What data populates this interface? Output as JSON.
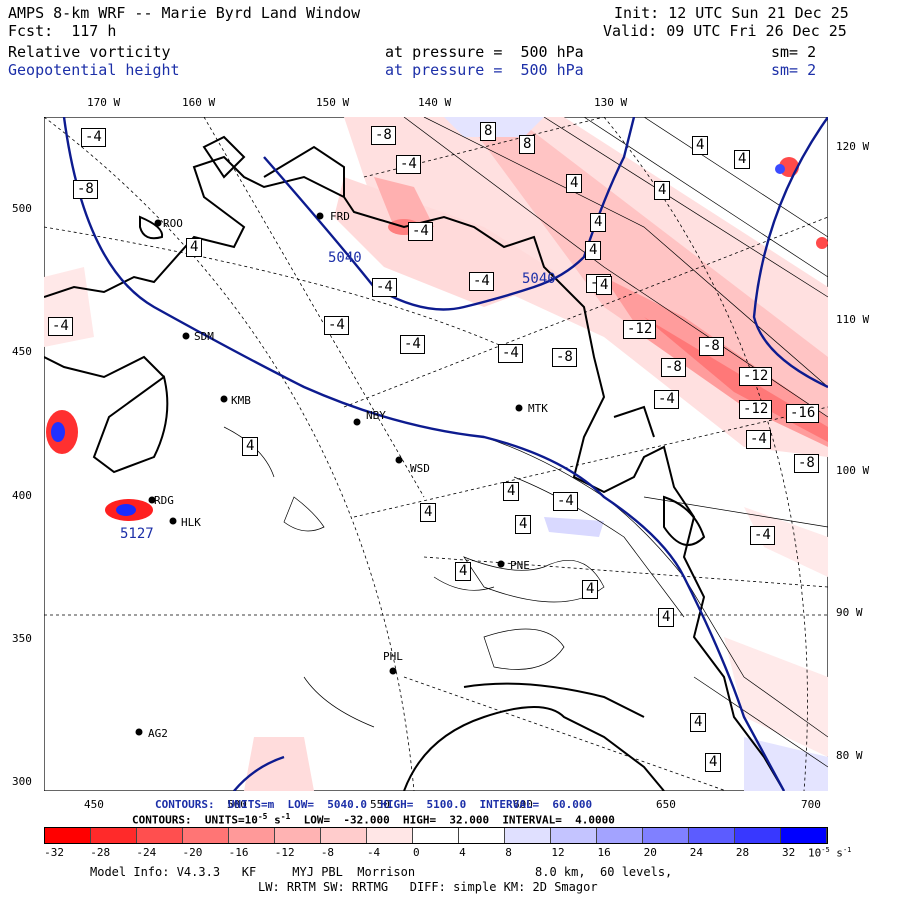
{
  "header": {
    "title": "AMPS 8-km WRF -- Marie Byrd Land Window",
    "init": "Init: 12 UTC Sun 21 Dec 25",
    "forecast": "Fcst:  117 h",
    "valid": "Valid: 09 UTC Fri 26 Dec 25",
    "field1": {
      "name": "Relative vorticity",
      "level": "at pressure =  500 hPa",
      "smooth": "sm= 2"
    },
    "field2": {
      "name": "Geopotential height",
      "level": "at pressure =  500 hPa",
      "smooth": "sm= 2"
    }
  },
  "axes": {
    "top_lon": [
      "170 W",
      "160 W",
      "150 W",
      "140 W",
      "130 W"
    ],
    "right_lon": [
      "120 W",
      "110 W",
      "100 W",
      "90 W",
      "80 W"
    ],
    "left_y": [
      "500",
      "450",
      "400",
      "350",
      "300"
    ],
    "bottom_x": [
      "450",
      "500",
      "550",
      "600",
      "650",
      "700"
    ]
  },
  "stations": [
    {
      "id": "ROO"
    },
    {
      "id": "FRD"
    },
    {
      "id": "SDM"
    },
    {
      "id": "KMB"
    },
    {
      "id": "NBY"
    },
    {
      "id": "MTK"
    },
    {
      "id": "WSD"
    },
    {
      "id": "HLK"
    },
    {
      "id": "PNE"
    },
    {
      "id": "PHL"
    },
    {
      "id": "AG2"
    },
    {
      "id": "RDG"
    }
  ],
  "height_labels": [
    "5040",
    "5040",
    "5127"
  ],
  "vort_labels": [
    "-4",
    "-8",
    "-8",
    "-4",
    "-4",
    "4",
    "-4",
    "-4",
    "-4",
    "-4",
    "-8",
    "-8",
    "-12",
    "-8",
    "-8",
    "-12",
    "-12",
    "-16",
    "-4",
    "-4",
    "-8",
    "4",
    "4",
    "4",
    "4",
    "4",
    "4",
    "4",
    "4",
    "4",
    "4",
    "4",
    "-4",
    "-4",
    "-4",
    "-4",
    "8",
    "8",
    "4",
    "4",
    "4",
    "4",
    "4"
  ],
  "contours_line1": {
    "prefix": "CONTOURS:  UNITS=m",
    "low": "LOW=  5040.0",
    "high": "HIGH=  5100.0",
    "interval": "INTERVAL=  60.000"
  },
  "contours_line2": {
    "prefix": "CONTOURS:  UNITS=10",
    "units_sup": "-5",
    "units_tail": " s",
    "units_tail_sup": "-1",
    "low": "LOW=  -32.000",
    "high": "HIGH=  32.000",
    "interval": "INTERVAL=  4.0000"
  },
  "colorbar": {
    "ticks": [
      "-32",
      "-28",
      "-24",
      "-20",
      "-16",
      "-12",
      "-8",
      "-4",
      "0",
      "4",
      "8",
      "12",
      "16",
      "20",
      "24",
      "28",
      "32"
    ],
    "unit": "10",
    "unit_sup": "-5",
    "unit_tail": " s",
    "unit_tail_sup": "-1",
    "colors": [
      "#ff0000",
      "#ff2a2a",
      "#ff4f4f",
      "#ff7575",
      "#ff9999",
      "#ffb3b3",
      "#ffcccc",
      "#ffe6e6",
      "#ffffff",
      "#ffffff",
      "#e0e0ff",
      "#c4c4ff",
      "#a3a3ff",
      "#8080ff",
      "#5c5cff",
      "#3838ff",
      "#0000ff"
    ]
  },
  "model_info": {
    "line1a": "Model Info: V4.3.3   KF     MYJ PBL  Morrison",
    "line1b": "8.0 km,  60 levels,",
    "line2": "LW: RRTM SW: RRTMG   DIFF: simple KM: 2D Smagor"
  }
}
